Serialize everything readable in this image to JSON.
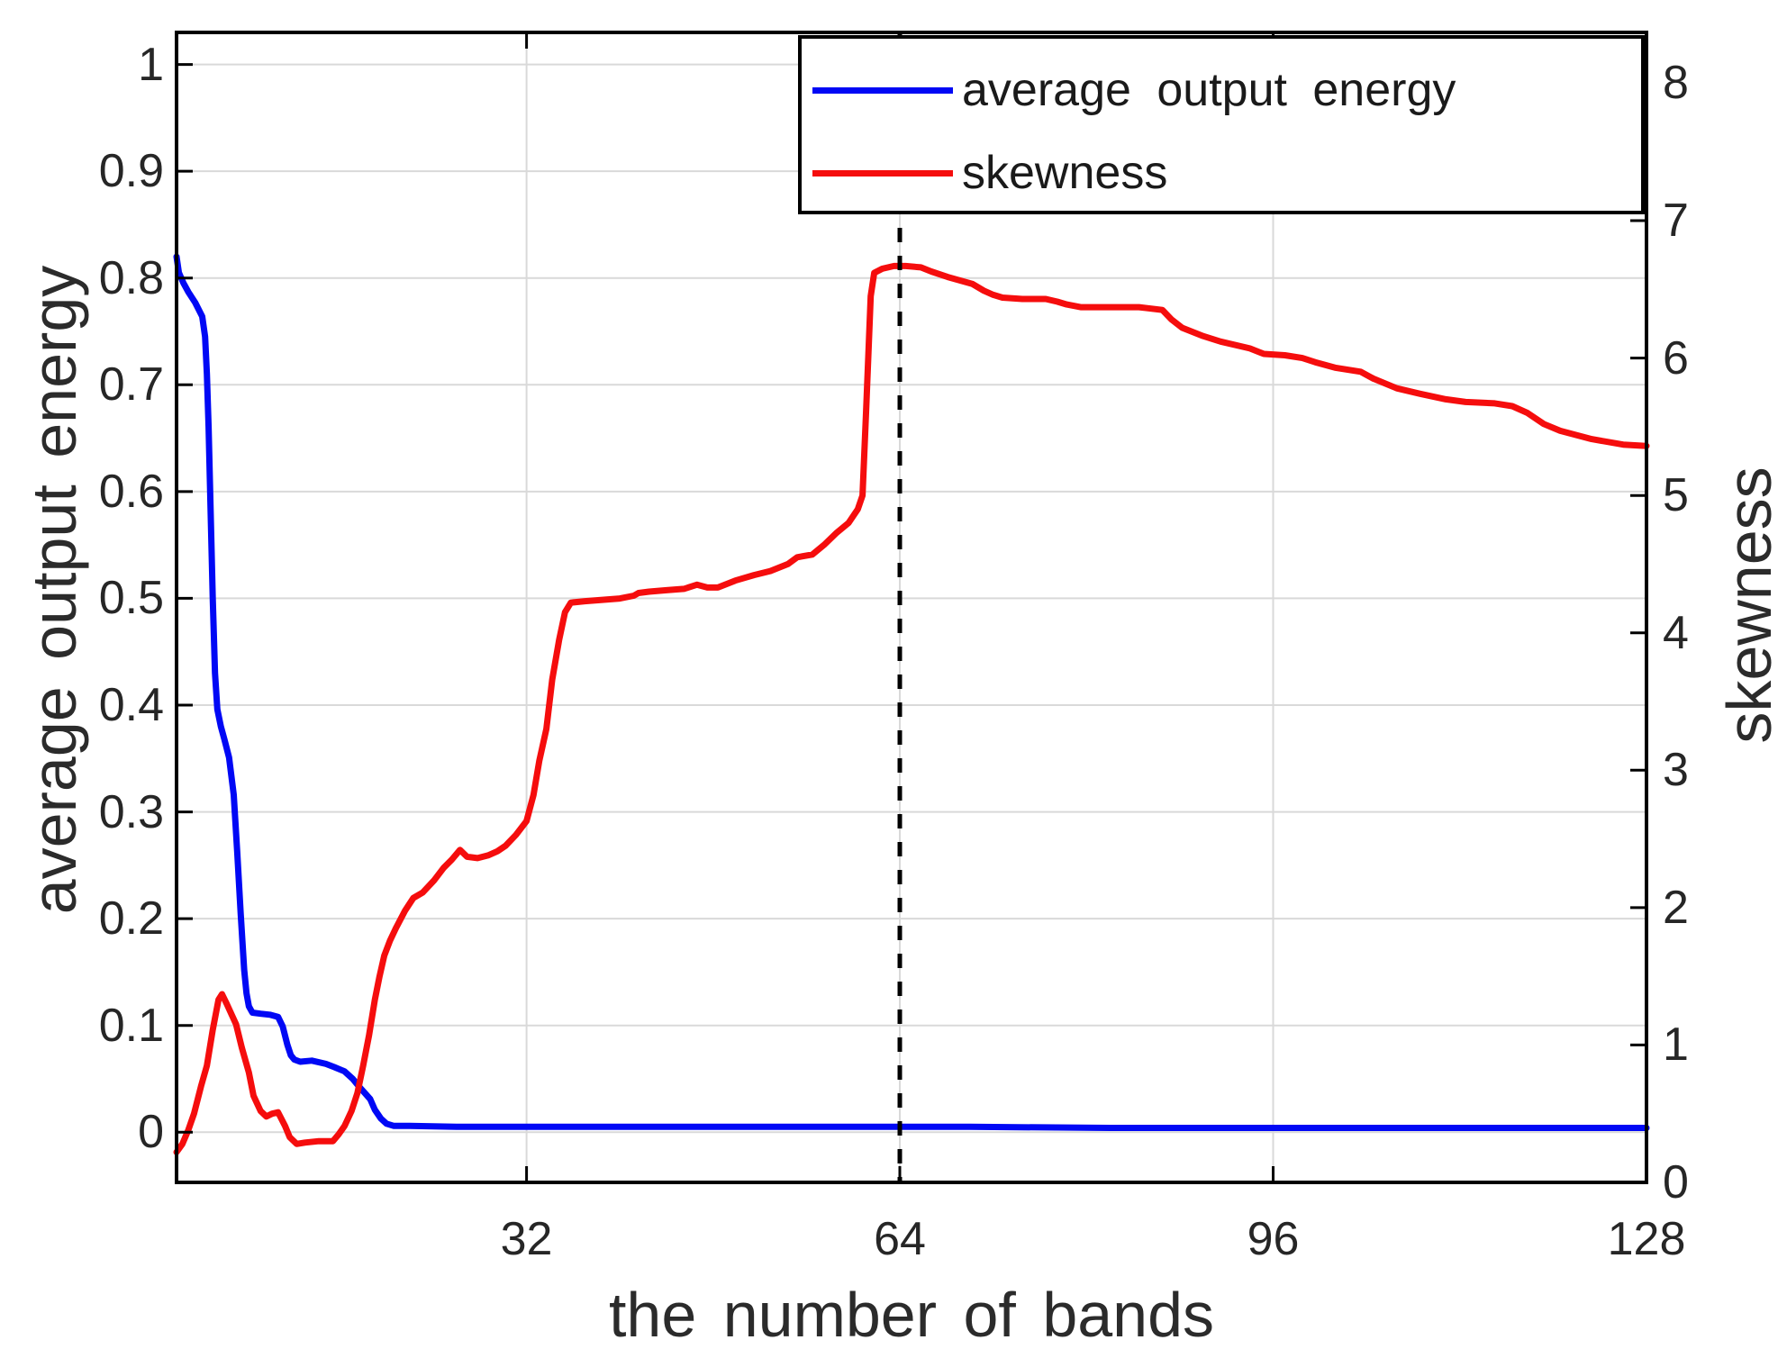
{
  "figure": {
    "background": "#ffffff"
  },
  "chart_data": {
    "type": "line",
    "title": "",
    "xlabel": "the number of bands",
    "ylabel_left": "average output energy",
    "ylabel_right": "skewness",
    "xlim": [
      2,
      128
    ],
    "ylim_left": [
      -0.047,
      1.03
    ],
    "ylim_right": [
      0,
      8.37
    ],
    "xticks": [
      32,
      64,
      96,
      128
    ],
    "yticks_left": [
      0,
      0.1,
      0.2,
      0.3,
      0.4,
      0.5,
      0.6,
      0.7,
      0.8,
      0.9,
      1
    ],
    "yticks_right": [
      0,
      1,
      2,
      3,
      4,
      5,
      6,
      7,
      8
    ],
    "grid": "on",
    "colors": {
      "grid": "#d9d9d9",
      "axis": "#000000",
      "tick_text": "#262626",
      "label_text": "#2b2b2b",
      "blue": "#0008f5",
      "red": "#f50d0d",
      "dashed": "#000000"
    },
    "annotation_vline": {
      "x": 64,
      "style": "dashed",
      "color": "#000000"
    },
    "legend": {
      "position": "northeast",
      "entries": [
        {
          "label": "average output energy",
          "color": "#0008f5"
        },
        {
          "label": "skewness",
          "color": "#f50d0d"
        }
      ]
    },
    "series": [
      {
        "name": "average output energy",
        "axis": "left",
        "color": "#0008f5",
        "points": [
          [
            2,
            0.82
          ],
          [
            2.2,
            0.805
          ],
          [
            2.6,
            0.795
          ],
          [
            3,
            0.787
          ],
          [
            3.6,
            0.777
          ],
          [
            4.2,
            0.764
          ],
          [
            4.45,
            0.745
          ],
          [
            4.6,
            0.71
          ],
          [
            4.75,
            0.66
          ],
          [
            4.9,
            0.59
          ],
          [
            5.1,
            0.5
          ],
          [
            5.3,
            0.43
          ],
          [
            5.5,
            0.396
          ],
          [
            5.8,
            0.38
          ],
          [
            6.1,
            0.368
          ],
          [
            6.5,
            0.351
          ],
          [
            6.9,
            0.316
          ],
          [
            7.2,
            0.262
          ],
          [
            7.5,
            0.205
          ],
          [
            7.8,
            0.152
          ],
          [
            8,
            0.13
          ],
          [
            8.2,
            0.118
          ],
          [
            8.5,
            0.112
          ],
          [
            9.2,
            0.111
          ],
          [
            10,
            0.11
          ],
          [
            10.7,
            0.108
          ],
          [
            11.1,
            0.099
          ],
          [
            11.5,
            0.082
          ],
          [
            11.8,
            0.072
          ],
          [
            12.1,
            0.068
          ],
          [
            12.6,
            0.066
          ],
          [
            13.6,
            0.067
          ],
          [
            14.8,
            0.064
          ],
          [
            15.5,
            0.061
          ],
          [
            16.4,
            0.057
          ],
          [
            17.1,
            0.05
          ],
          [
            17.7,
            0.042
          ],
          [
            18.2,
            0.036
          ],
          [
            18.6,
            0.031
          ],
          [
            19,
            0.021
          ],
          [
            19.5,
            0.013
          ],
          [
            20,
            0.008
          ],
          [
            20.6,
            0.006
          ],
          [
            22,
            0.006
          ],
          [
            26,
            0.005
          ],
          [
            34,
            0.005
          ],
          [
            46,
            0.005
          ],
          [
            58,
            0.005
          ],
          [
            70,
            0.005
          ],
          [
            82,
            0.004
          ],
          [
            96,
            0.004
          ],
          [
            112,
            0.004
          ],
          [
            128,
            0.004
          ]
        ]
      },
      {
        "name": "skewness",
        "axis": "right",
        "color": "#f50d0d",
        "points": [
          [
            2,
            0.22
          ],
          [
            2.5,
            0.28
          ],
          [
            3,
            0.38
          ],
          [
            3.5,
            0.5
          ],
          [
            4.1,
            0.7
          ],
          [
            4.6,
            0.85
          ],
          [
            5.1,
            1.11
          ],
          [
            5.6,
            1.33
          ],
          [
            5.9,
            1.37
          ],
          [
            6.3,
            1.3
          ],
          [
            7.1,
            1.15
          ],
          [
            7.6,
            0.98
          ],
          [
            8.2,
            0.8
          ],
          [
            8.6,
            0.63
          ],
          [
            9.2,
            0.52
          ],
          [
            9.7,
            0.48
          ],
          [
            10.2,
            0.5
          ],
          [
            10.7,
            0.51
          ],
          [
            11.3,
            0.41
          ],
          [
            11.7,
            0.33
          ],
          [
            12.3,
            0.28
          ],
          [
            13,
            0.29
          ],
          [
            14.2,
            0.3
          ],
          [
            15.4,
            0.3
          ],
          [
            15.9,
            0.35
          ],
          [
            16.4,
            0.41
          ],
          [
            17,
            0.52
          ],
          [
            17.5,
            0.65
          ],
          [
            18,
            0.85
          ],
          [
            18.5,
            1.07
          ],
          [
            19,
            1.33
          ],
          [
            19.4,
            1.5
          ],
          [
            19.8,
            1.65
          ],
          [
            20.3,
            1.76
          ],
          [
            20.8,
            1.85
          ],
          [
            21.6,
            1.98
          ],
          [
            22.3,
            2.07
          ],
          [
            23.1,
            2.11
          ],
          [
            24.1,
            2.2
          ],
          [
            24.9,
            2.29
          ],
          [
            25.6,
            2.35
          ],
          [
            26.3,
            2.42
          ],
          [
            26.9,
            2.37
          ],
          [
            27.8,
            2.36
          ],
          [
            28.7,
            2.38
          ],
          [
            29.5,
            2.41
          ],
          [
            30.2,
            2.45
          ],
          [
            31.1,
            2.53
          ],
          [
            32,
            2.63
          ],
          [
            32.6,
            2.82
          ],
          [
            33.1,
            3.07
          ],
          [
            33.7,
            3.3
          ],
          [
            34.2,
            3.66
          ],
          [
            34.8,
            3.95
          ],
          [
            35.3,
            4.15
          ],
          [
            35.8,
            4.22
          ],
          [
            37,
            4.23
          ],
          [
            38.5,
            4.24
          ],
          [
            40,
            4.25
          ],
          [
            41.2,
            4.27
          ],
          [
            41.6,
            4.29
          ],
          [
            42.5,
            4.3
          ],
          [
            44,
            4.31
          ],
          [
            45.5,
            4.32
          ],
          [
            46.6,
            4.35
          ],
          [
            47.5,
            4.33
          ],
          [
            48.4,
            4.33
          ],
          [
            49.9,
            4.38
          ],
          [
            51.5,
            4.42
          ],
          [
            52.9,
            4.45
          ],
          [
            54.4,
            4.5
          ],
          [
            55.2,
            4.55
          ],
          [
            56.5,
            4.57
          ],
          [
            57.5,
            4.64
          ],
          [
            58.6,
            4.73
          ],
          [
            59.6,
            4.8
          ],
          [
            60.4,
            4.9
          ],
          [
            60.8,
            5.0
          ],
          [
            61.1,
            5.6
          ],
          [
            61.5,
            6.45
          ],
          [
            61.8,
            6.62
          ],
          [
            62.5,
            6.65
          ],
          [
            63.5,
            6.67
          ],
          [
            64.5,
            6.67
          ],
          [
            65.8,
            6.66
          ],
          [
            66.7,
            6.63
          ],
          [
            68.1,
            6.59
          ],
          [
            70.2,
            6.54
          ],
          [
            71.2,
            6.49
          ],
          [
            72,
            6.46
          ],
          [
            72.8,
            6.44
          ],
          [
            74.5,
            6.43
          ],
          [
            76.5,
            6.43
          ],
          [
            77.5,
            6.41
          ],
          [
            78.3,
            6.39
          ],
          [
            79.5,
            6.37
          ],
          [
            82,
            6.37
          ],
          [
            84.5,
            6.37
          ],
          [
            86.5,
            6.35
          ],
          [
            87.3,
            6.28
          ],
          [
            88.2,
            6.22
          ],
          [
            90,
            6.16
          ],
          [
            91.5,
            6.12
          ],
          [
            94,
            6.07
          ],
          [
            95.2,
            6.03
          ],
          [
            97,
            6.02
          ],
          [
            98.5,
            6.0
          ],
          [
            99.6,
            5.97
          ],
          [
            101.3,
            5.93
          ],
          [
            103.5,
            5.9
          ],
          [
            104.6,
            5.85
          ],
          [
            106.6,
            5.78
          ],
          [
            108.6,
            5.74
          ],
          [
            110.8,
            5.7
          ],
          [
            112.5,
            5.68
          ],
          [
            115,
            5.67
          ],
          [
            116.5,
            5.65
          ],
          [
            117.8,
            5.6
          ],
          [
            119.2,
            5.52
          ],
          [
            120.6,
            5.47
          ],
          [
            123.3,
            5.41
          ],
          [
            126,
            5.37
          ],
          [
            128,
            5.36
          ]
        ]
      }
    ]
  }
}
